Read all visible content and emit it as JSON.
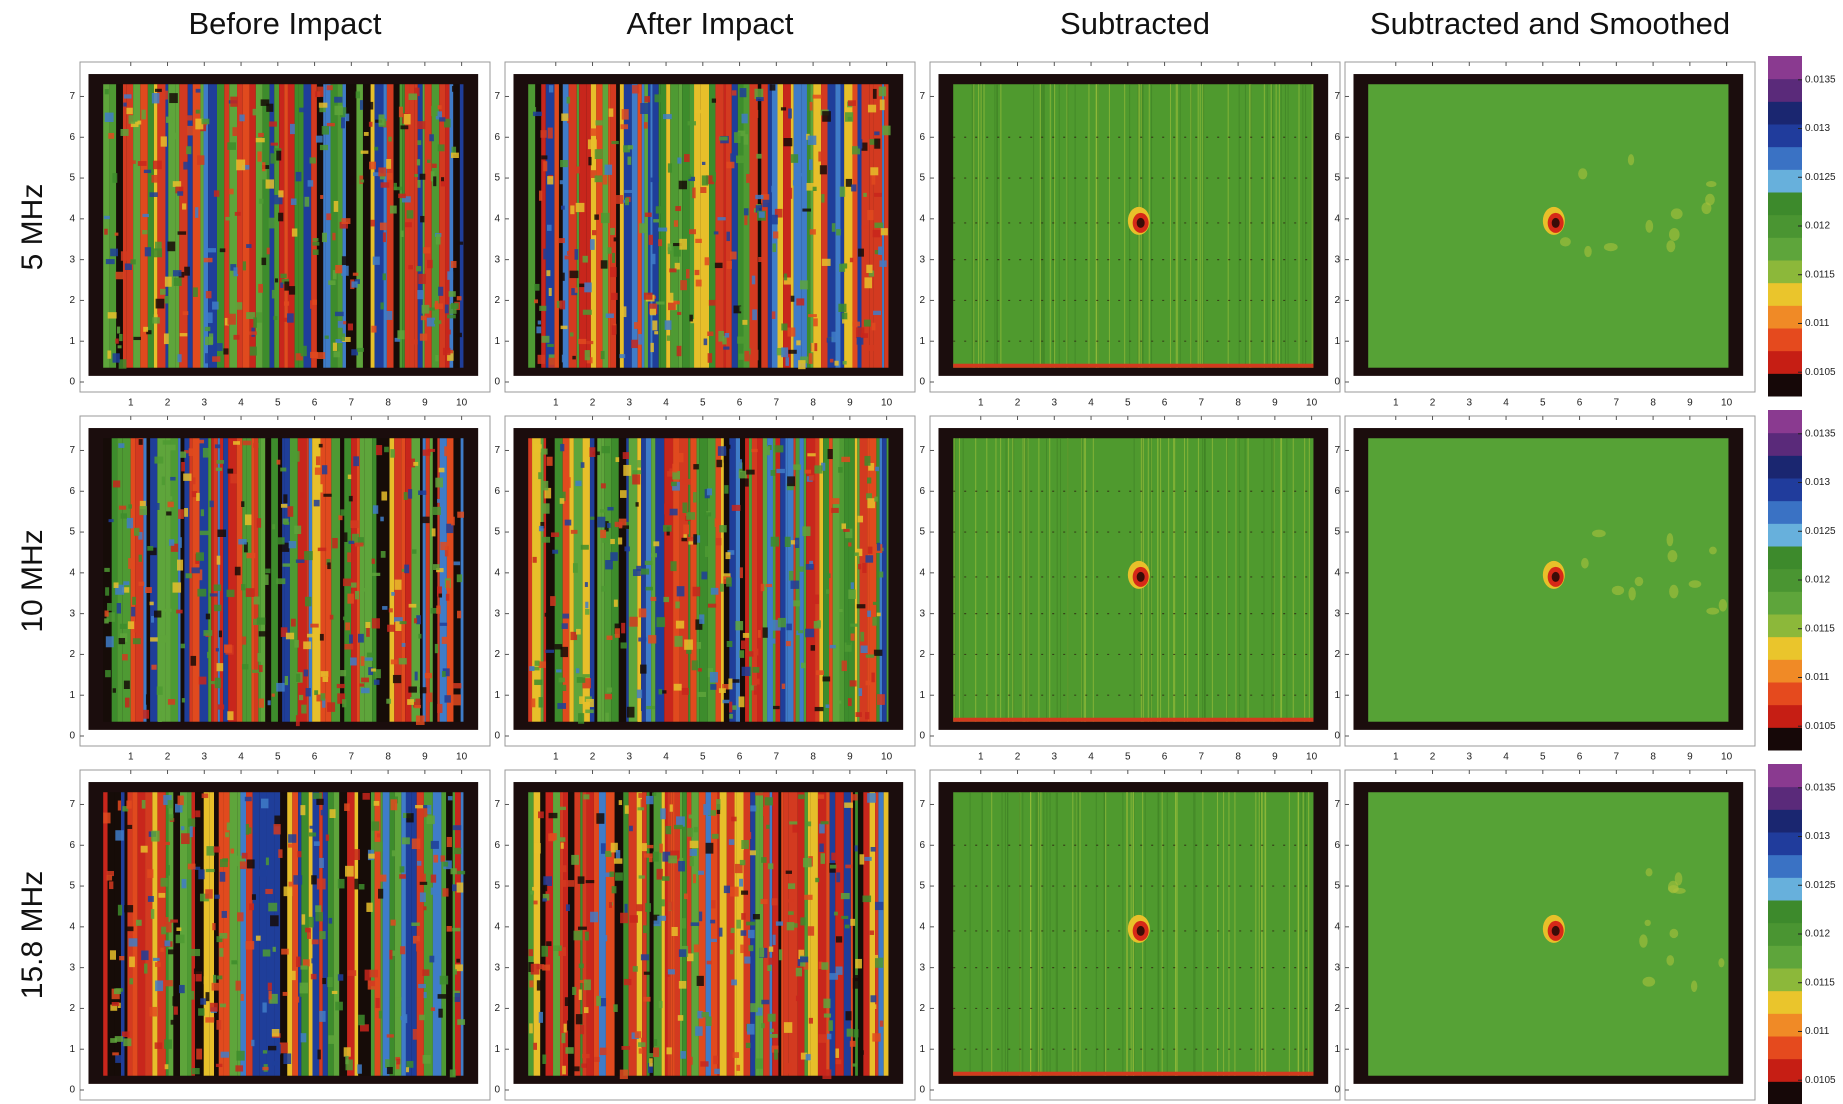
{
  "columns": [
    "Before Impact",
    "After Impact",
    "Subtracted",
    "Subtracted and Smoothed"
  ],
  "rows": [
    "5 MHz",
    "10 MHz",
    "15.8 MHz"
  ],
  "xticks": [
    1,
    2,
    3,
    4,
    5,
    6,
    7,
    8,
    9,
    10
  ],
  "yticks": [
    0,
    1,
    2,
    3,
    4,
    5,
    6,
    7
  ],
  "colorbar_ticks": [
    0.0135,
    0.013,
    0.0125,
    0.012,
    0.0115,
    0.011,
    0.0105
  ]
}
